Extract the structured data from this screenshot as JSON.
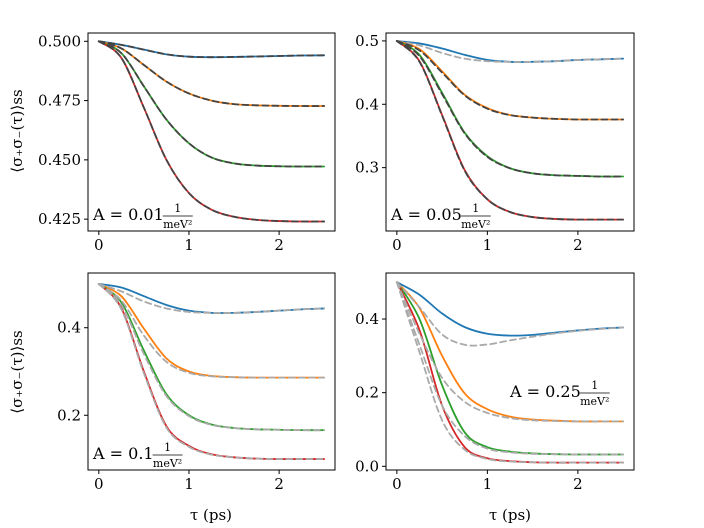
{
  "chart_data": {
    "type": "line",
    "ylabel": "⟨σ₊σ₋(τ)⟩ss",
    "xlabel": "τ (ps)",
    "colors": {
      "blue": "#1f77b4",
      "orange": "#ff7f0e",
      "green": "#2ca02c",
      "red": "#d62728",
      "dashed_gray": "#aaaaaa",
      "dashed_dark": "#444444"
    },
    "panels": [
      {
        "id": "A-0.01",
        "annotation": {
          "prefix": "A = 0.01",
          "numerator": "1",
          "denominator": "meV²"
        },
        "annotation_anchor": "bottom-left",
        "xlim": [
          -0.12,
          2.62
        ],
        "ylim": [
          0.42,
          0.5035
        ],
        "xticks": [
          0,
          1,
          2
        ],
        "xtick_labels": [
          "0",
          "1",
          "2"
        ],
        "yticks": [
          0.425,
          0.45,
          0.475,
          0.5
        ],
        "ytick_labels": [
          "0.425",
          "0.450",
          "0.475",
          "0.500"
        ],
        "dashed_style": "dark",
        "x": [
          0,
          0.25,
          0.5,
          0.75,
          1.0,
          1.25,
          1.5,
          1.75,
          2.0,
          2.25,
          2.5
        ],
        "series": [
          {
            "name": "blue",
            "solid": [
              0.5,
              0.4985,
              0.4965,
              0.4945,
              0.4935,
              0.4933,
              0.4934,
              0.4936,
              0.4938,
              0.494,
              0.4941
            ],
            "dashed": [
              0.5,
              0.4985,
              0.4965,
              0.4945,
              0.4935,
              0.4933,
              0.4934,
              0.4936,
              0.4938,
              0.494,
              0.4941
            ]
          },
          {
            "name": "orange",
            "solid": [
              0.5,
              0.497,
              0.49,
              0.483,
              0.478,
              0.475,
              0.4735,
              0.473,
              0.4728,
              0.4727,
              0.4727
            ],
            "dashed": [
              0.5,
              0.497,
              0.49,
              0.483,
              0.478,
              0.475,
              0.4735,
              0.473,
              0.4728,
              0.4727,
              0.4727
            ]
          },
          {
            "name": "green",
            "solid": [
              0.5,
              0.495,
              0.481,
              0.467,
              0.457,
              0.451,
              0.4485,
              0.4476,
              0.4473,
              0.4472,
              0.4472
            ],
            "dashed": [
              0.5,
              0.495,
              0.481,
              0.467,
              0.457,
              0.451,
              0.4485,
              0.4476,
              0.4473,
              0.4472,
              0.4472
            ]
          },
          {
            "name": "red",
            "solid": [
              0.5,
              0.493,
              0.472,
              0.45,
              0.436,
              0.429,
              0.426,
              0.4247,
              0.4242,
              0.424,
              0.424
            ],
            "dashed": [
              0.5,
              0.493,
              0.472,
              0.45,
              0.436,
              0.429,
              0.426,
              0.4247,
              0.4242,
              0.424,
              0.424
            ]
          }
        ]
      },
      {
        "id": "A-0.05",
        "annotation": {
          "prefix": "A = 0.05",
          "numerator": "1",
          "denominator": "meV²"
        },
        "annotation_anchor": "bottom-left",
        "xlim": [
          -0.12,
          2.62
        ],
        "ylim": [
          0.2,
          0.5125
        ],
        "xticks": [
          0,
          1,
          2
        ],
        "xtick_labels": [
          "0",
          "1",
          "2"
        ],
        "yticks": [
          0.3,
          0.4,
          0.5
        ],
        "ytick_labels": [
          "0.3",
          "0.4",
          "0.5"
        ],
        "dashed_style": "mixed",
        "x": [
          0,
          0.25,
          0.5,
          0.75,
          1.0,
          1.25,
          1.5,
          1.75,
          2.0,
          2.25,
          2.5
        ],
        "series": [
          {
            "name": "blue",
            "solid": [
              0.5,
              0.496,
              0.488,
              0.478,
              0.47,
              0.467,
              0.467,
              0.468,
              0.47,
              0.471,
              0.472
            ],
            "dashed": [
              0.5,
              0.493,
              0.481,
              0.472,
              0.468,
              0.467,
              0.467,
              0.468,
              0.47,
              0.471,
              0.472
            ]
          },
          {
            "name": "orange",
            "solid": [
              0.5,
              0.487,
              0.452,
              0.415,
              0.394,
              0.383,
              0.379,
              0.377,
              0.376,
              0.376,
              0.376
            ],
            "dashed": [
              0.5,
              0.485,
              0.45,
              0.414,
              0.393,
              0.383,
              0.379,
              0.377,
              0.376,
              0.376,
              0.376
            ]
          },
          {
            "name": "green",
            "solid": [
              0.5,
              0.478,
              0.418,
              0.355,
              0.318,
              0.299,
              0.291,
              0.288,
              0.287,
              0.286,
              0.286
            ],
            "dashed": [
              0.5,
              0.476,
              0.416,
              0.354,
              0.317,
              0.299,
              0.291,
              0.288,
              0.287,
              0.286,
              0.286
            ]
          },
          {
            "name": "red",
            "solid": [
              0.5,
              0.468,
              0.383,
              0.296,
              0.25,
              0.23,
              0.222,
              0.219,
              0.218,
              0.218,
              0.218
            ],
            "dashed": [
              0.5,
              0.467,
              0.382,
              0.295,
              0.25,
              0.23,
              0.222,
              0.219,
              0.218,
              0.218,
              0.218
            ]
          }
        ]
      },
      {
        "id": "A-0.1",
        "annotation": {
          "prefix": "A = 0.1",
          "numerator": "1",
          "denominator": "meV²"
        },
        "annotation_anchor": "bottom-left",
        "xlim": [
          -0.12,
          2.62
        ],
        "ylim": [
          0.075,
          0.525
        ],
        "xticks": [
          0,
          1,
          2
        ],
        "xtick_labels": [
          "0",
          "1",
          "2"
        ],
        "yticks": [
          0.2,
          0.4
        ],
        "ytick_labels": [
          "0.2",
          "0.4"
        ],
        "dashed_style": "gray",
        "x": [
          0,
          0.25,
          0.5,
          0.75,
          1.0,
          1.25,
          1.5,
          1.75,
          2.0,
          2.25,
          2.5
        ],
        "series": [
          {
            "name": "blue",
            "solid": [
              0.5,
              0.492,
              0.472,
              0.452,
              0.439,
              0.434,
              0.434,
              0.436,
              0.439,
              0.442,
              0.444
            ],
            "dashed": [
              0.5,
              0.483,
              0.46,
              0.444,
              0.436,
              0.434,
              0.434,
              0.436,
              0.439,
              0.442,
              0.444
            ]
          },
          {
            "name": "orange",
            "solid": [
              0.5,
              0.472,
              0.398,
              0.33,
              0.3,
              0.29,
              0.287,
              0.286,
              0.286,
              0.286,
              0.286
            ],
            "dashed": [
              0.5,
              0.462,
              0.382,
              0.322,
              0.297,
              0.289,
              0.287,
              0.286,
              0.286,
              0.286,
              0.286
            ]
          },
          {
            "name": "green",
            "solid": [
              0.5,
              0.458,
              0.348,
              0.248,
              0.2,
              0.179,
              0.171,
              0.168,
              0.167,
              0.166,
              0.166
            ],
            "dashed": [
              0.5,
              0.452,
              0.34,
              0.244,
              0.198,
              0.178,
              0.171,
              0.168,
              0.167,
              0.166,
              0.166
            ]
          },
          {
            "name": "red",
            "solid": [
              0.5,
              0.445,
              0.3,
              0.175,
              0.13,
              0.111,
              0.104,
              0.101,
              0.1,
              0.1,
              0.1
            ],
            "dashed": [
              0.5,
              0.442,
              0.296,
              0.172,
              0.128,
              0.11,
              0.104,
              0.101,
              0.1,
              0.1,
              0.1
            ]
          }
        ]
      },
      {
        "id": "A-0.25",
        "annotation": {
          "prefix": "A = 0.25",
          "numerator": "1",
          "denominator": "meV²"
        },
        "annotation_anchor": "right",
        "xlim": [
          -0.12,
          2.62
        ],
        "ylim": [
          -0.01,
          0.525
        ],
        "xticks": [
          0,
          1,
          2
        ],
        "xtick_labels": [
          "0",
          "1",
          "2"
        ],
        "yticks": [
          0.0,
          0.2,
          0.4
        ],
        "ytick_labels": [
          "0.0",
          "0.2",
          "0.4"
        ],
        "dashed_style": "gray",
        "x": [
          0,
          0.25,
          0.5,
          0.75,
          1.0,
          1.25,
          1.5,
          1.75,
          2.0,
          2.25,
          2.5
        ],
        "series": [
          {
            "name": "blue",
            "solid": [
              0.5,
              0.466,
              0.415,
              0.378,
              0.36,
              0.355,
              0.357,
              0.363,
              0.369,
              0.374,
              0.377
            ],
            "dashed": [
              0.5,
              0.432,
              0.358,
              0.33,
              0.331,
              0.342,
              0.352,
              0.361,
              0.368,
              0.373,
              0.377
            ]
          },
          {
            "name": "orange",
            "solid": [
              0.5,
              0.43,
              0.3,
              0.198,
              0.155,
              0.135,
              0.127,
              0.124,
              0.122,
              0.122,
              0.122
            ],
            "dashed": [
              0.5,
              0.36,
              0.24,
              0.175,
              0.145,
              0.131,
              0.125,
              0.123,
              0.122,
              0.122,
              0.122
            ]
          },
          {
            "name": "green",
            "solid": [
              0.5,
              0.4,
              0.22,
              0.092,
              0.052,
              0.04,
              0.035,
              0.033,
              0.032,
              0.032,
              0.032
            ],
            "dashed": [
              0.5,
              0.33,
              0.165,
              0.082,
              0.048,
              0.038,
              0.034,
              0.033,
              0.032,
              0.032,
              0.032
            ]
          },
          {
            "name": "red",
            "solid": [
              0.5,
              0.37,
              0.165,
              0.052,
              0.022,
              0.014,
              0.011,
              0.01,
              0.01,
              0.01,
              0.01
            ],
            "dashed": [
              0.5,
              0.31,
              0.125,
              0.045,
              0.02,
              0.013,
              0.011,
              0.01,
              0.01,
              0.01,
              0.01
            ]
          }
        ]
      }
    ]
  }
}
